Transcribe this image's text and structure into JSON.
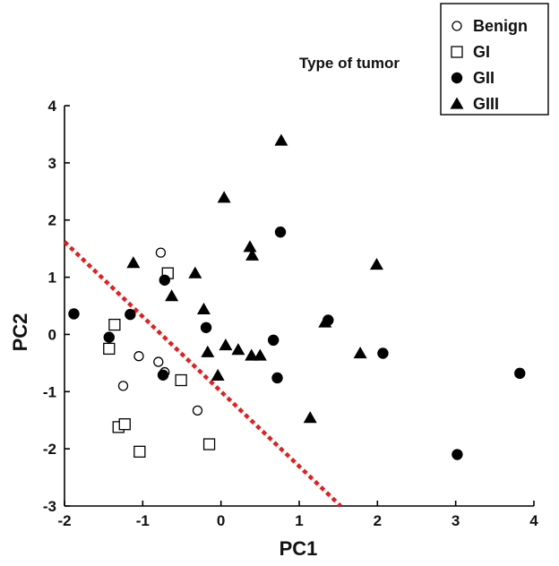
{
  "chart_data": {
    "type": "scatter",
    "title": "",
    "legend_title": "Type of tumor",
    "xlabel": "PC1",
    "ylabel": "PC2",
    "xlim": [
      -2,
      4
    ],
    "ylim": [
      -3,
      4
    ],
    "xticks": [
      -2,
      -1,
      0,
      1,
      2,
      3,
      4
    ],
    "yticks": [
      -3,
      -2,
      -1,
      0,
      1,
      2,
      3,
      4
    ],
    "grid": false,
    "legend_position": "top-right",
    "series": [
      {
        "name": "Benign",
        "marker": "open-circle",
        "points": [
          [
            -0.77,
            1.43
          ],
          [
            -1.05,
            -0.38
          ],
          [
            -0.8,
            -0.48
          ],
          [
            -0.72,
            -0.66
          ],
          [
            -1.25,
            -0.9
          ],
          [
            -0.3,
            -1.33
          ]
        ]
      },
      {
        "name": "GI",
        "marker": "open-square",
        "points": [
          [
            -0.68,
            1.07
          ],
          [
            -1.36,
            0.17
          ],
          [
            -1.43,
            -0.25
          ],
          [
            -0.51,
            -0.8
          ],
          [
            -1.31,
            -1.62
          ],
          [
            -1.23,
            -1.57
          ],
          [
            -1.04,
            -2.05
          ],
          [
            -0.15,
            -1.92
          ]
        ]
      },
      {
        "name": "GII",
        "marker": "filled-circle",
        "points": [
          [
            -1.88,
            0.36
          ],
          [
            -1.43,
            -0.05
          ],
          [
            -1.16,
            0.35
          ],
          [
            -0.72,
            0.95
          ],
          [
            -0.74,
            -0.71
          ],
          [
            -0.19,
            0.12
          ],
          [
            0.67,
            -0.1
          ],
          [
            0.76,
            1.79
          ],
          [
            0.72,
            -0.76
          ],
          [
            1.37,
            0.25
          ],
          [
            2.07,
            -0.33
          ],
          [
            3.02,
            -2.1
          ],
          [
            3.82,
            -0.68
          ]
        ]
      },
      {
        "name": "GIII",
        "marker": "filled-triangle",
        "points": [
          [
            -1.12,
            1.25
          ],
          [
            -0.33,
            1.07
          ],
          [
            -0.63,
            0.67
          ],
          [
            -0.22,
            0.44
          ],
          [
            -0.17,
            -0.31
          ],
          [
            -0.04,
            -0.72
          ],
          [
            0.06,
            -0.19
          ],
          [
            0.22,
            -0.27
          ],
          [
            0.04,
            2.39
          ],
          [
            0.37,
            1.53
          ],
          [
            0.4,
            1.38
          ],
          [
            0.39,
            -0.37
          ],
          [
            0.5,
            -0.37
          ],
          [
            0.77,
            3.39
          ],
          [
            1.14,
            -1.46
          ],
          [
            1.33,
            0.21
          ],
          [
            1.78,
            -0.33
          ],
          [
            1.99,
            1.22
          ]
        ]
      }
    ],
    "separator": {
      "style": "dashed",
      "color": "#e02020",
      "from": [
        -2,
        1.62
      ],
      "to": [
        1.53,
        -3
      ]
    }
  }
}
